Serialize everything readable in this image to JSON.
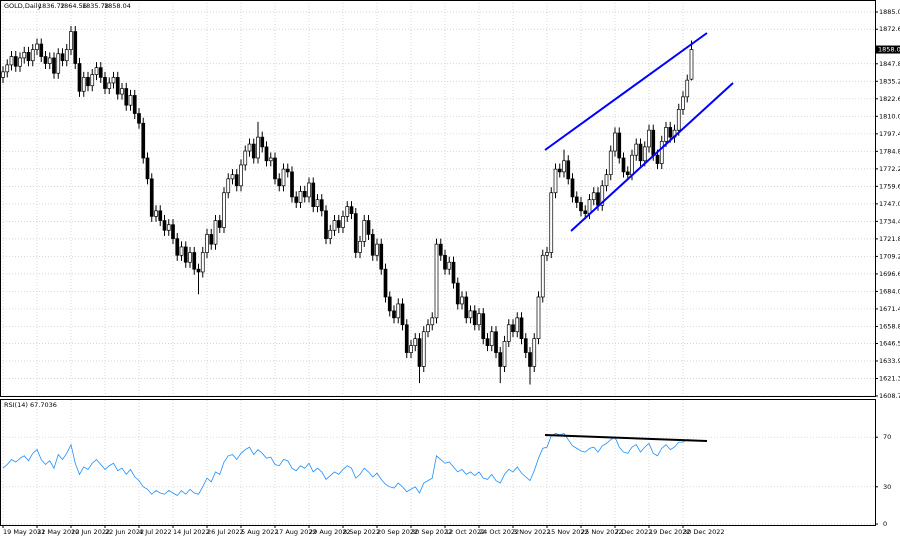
{
  "chart_data": {
    "type": "candlestick",
    "title": "GOLD,Daily",
    "color": "#000000",
    "categories": [
      "19 May 2022",
      null,
      null,
      null,
      null,
      null,
      null,
      null,
      "31 May 2022",
      null,
      null,
      null,
      null,
      null,
      null,
      null,
      "10 Jun 2022",
      null,
      null,
      null,
      null,
      null,
      null,
      null,
      "22 Jun 2022",
      null,
      null,
      null,
      null,
      null,
      null,
      null,
      "4 Jul 2022",
      null,
      null,
      null,
      null,
      null,
      null,
      null,
      "14 Jul 2022",
      null,
      null,
      null,
      null,
      null,
      null,
      null,
      "26 Jul 2022",
      null,
      null,
      null,
      null,
      null,
      null,
      null,
      "5 Aug 2022",
      null,
      null,
      null,
      null,
      null,
      null,
      null,
      "17 Aug 2022",
      null,
      null,
      null,
      null,
      null,
      null,
      null,
      "29 Aug 2022",
      null,
      null,
      null,
      null,
      null,
      null,
      null,
      "8 Sep 2022",
      null,
      null,
      null,
      null,
      null,
      null,
      null,
      "20 Sep 2022",
      null,
      null,
      null,
      null,
      null,
      null,
      null,
      "30 Sep 2022",
      null,
      null,
      null,
      null,
      null,
      null,
      null,
      "12 Oct 2022",
      null,
      null,
      null,
      null,
      null,
      null,
      null,
      "24 Oct 2022",
      null,
      null,
      null,
      null,
      null,
      null,
      null,
      "3 Nov 2022",
      null,
      null,
      null,
      null,
      null,
      null,
      null,
      "15 Nov 2022",
      null,
      null,
      null,
      null,
      null,
      null,
      null,
      "25 Nov 2022",
      null,
      null,
      null,
      null,
      null,
      null,
      null,
      "7 Dec 2022",
      null,
      null,
      null,
      null,
      null,
      null,
      null,
      "19 Dec 2022",
      null,
      null,
      null,
      null,
      null,
      null,
      null,
      "30 Dec 2022",
      null,
      null
    ],
    "open": [
      1838,
      1842,
      1847,
      1853,
      1846,
      1852,
      1856,
      1850,
      1858,
      1862,
      1853,
      1848,
      1852,
      1841,
      1855,
      1850,
      1858,
      1871,
      1848,
      1828,
      1838,
      1832,
      1840,
      1845,
      1838,
      1830,
      1834,
      1838,
      1826,
      1830,
      1818,
      1825,
      1812,
      1805,
      1780,
      1765,
      1738,
      1742,
      1735,
      1728,
      1732,
      1722,
      1710,
      1716,
      1705,
      1712,
      1700,
      1698,
      1712,
      1725,
      1718,
      1735,
      1730,
      1755,
      1765,
      1768,
      1760,
      1775,
      1785,
      1790,
      1780,
      1795,
      1788,
      1778,
      1780,
      1765,
      1760,
      1772,
      1770,
      1752,
      1748,
      1756,
      1752,
      1762,
      1745,
      1750,
      1742,
      1722,
      1728,
      1735,
      1730,
      1738,
      1745,
      1740,
      1712,
      1720,
      1735,
      1725,
      1710,
      1718,
      1700,
      1680,
      1670,
      1665,
      1675,
      1660,
      1640,
      1645,
      1650,
      1630,
      1655,
      1660,
      1665,
      1718,
      1710,
      1700,
      1705,
      1690,
      1675,
      1680,
      1665,
      1670,
      1660,
      1668,
      1650,
      1645,
      1655,
      1640,
      1630,
      1648,
      1660,
      1655,
      1665,
      1650,
      1640,
      1630,
      1650,
      1680,
      1710,
      1712,
      1755,
      1772,
      1770,
      1778,
      1765,
      1752,
      1748,
      1742,
      1740,
      1750,
      1755,
      1746,
      1760,
      1768,
      1785,
      1798,
      1780,
      1770,
      1768,
      1782,
      1790,
      1778,
      1788,
      1800,
      1782,
      1776,
      1792,
      1802,
      1795,
      1800,
      1815,
      1824,
      1836.72
    ],
    "high": [
      1846,
      1851,
      1857,
      1857,
      1856,
      1860,
      1860,
      1862,
      1866,
      1866,
      1857,
      1856,
      1856,
      1859,
      1859,
      1862,
      1875,
      1875,
      1852,
      1842,
      1842,
      1844,
      1849,
      1849,
      1842,
      1838,
      1842,
      1842,
      1834,
      1834,
      1829,
      1829,
      1816,
      1809,
      1784,
      1769,
      1746,
      1746,
      1739,
      1736,
      1736,
      1726,
      1720,
      1720,
      1716,
      1716,
      1704,
      1716,
      1729,
      1729,
      1739,
      1739,
      1759,
      1769,
      1772,
      1772,
      1779,
      1789,
      1794,
      1794,
      1806,
      1799,
      1792,
      1784,
      1784,
      1769,
      1776,
      1776,
      1774,
      1756,
      1760,
      1760,
      1766,
      1766,
      1754,
      1754,
      1746,
      1732,
      1739,
      1739,
      1742,
      1749,
      1749,
      1744,
      1724,
      1739,
      1739,
      1729,
      1722,
      1722,
      1704,
      1684,
      1674,
      1679,
      1679,
      1664,
      1649,
      1654,
      1654,
      1659,
      1664,
      1669,
      1722,
      1722,
      1714,
      1709,
      1709,
      1694,
      1684,
      1684,
      1674,
      1674,
      1672,
      1672,
      1654,
      1659,
      1659,
      1644,
      1652,
      1664,
      1664,
      1669,
      1669,
      1654,
      1644,
      1654,
      1684,
      1714,
      1716,
      1759,
      1776,
      1776,
      1786,
      1782,
      1769,
      1756,
      1752,
      1746,
      1754,
      1759,
      1759,
      1764,
      1772,
      1789,
      1802,
      1802,
      1784,
      1774,
      1786,
      1794,
      1794,
      1792,
      1804,
      1804,
      1786,
      1796,
      1806,
      1806,
      1804,
      1819,
      1828,
      1840,
      1864.56
    ],
    "low": [
      1834,
      1838,
      1843,
      1842,
      1842,
      1848,
      1846,
      1846,
      1854,
      1849,
      1844,
      1844,
      1837,
      1837,
      1846,
      1846,
      1854,
      1844,
      1824,
      1824,
      1828,
      1828,
      1836,
      1834,
      1826,
      1826,
      1830,
      1822,
      1822,
      1814,
      1814,
      1808,
      1801,
      1776,
      1761,
      1734,
      1734,
      1731,
      1724,
      1724,
      1718,
      1706,
      1706,
      1701,
      1701,
      1696,
      1682,
      1694,
      1708,
      1714,
      1714,
      1726,
      1726,
      1751,
      1761,
      1756,
      1756,
      1771,
      1781,
      1776,
      1776,
      1784,
      1774,
      1774,
      1761,
      1756,
      1756,
      1766,
      1748,
      1744,
      1744,
      1748,
      1748,
      1741,
      1741,
      1738,
      1718,
      1718,
      1724,
      1726,
      1726,
      1734,
      1736,
      1708,
      1708,
      1716,
      1721,
      1706,
      1706,
      1696,
      1676,
      1666,
      1661,
      1661,
      1656,
      1636,
      1636,
      1641,
      1618,
      1626,
      1651,
      1656,
      1661,
      1706,
      1696,
      1696,
      1686,
      1671,
      1671,
      1661,
      1661,
      1656,
      1656,
      1646,
      1641,
      1641,
      1636,
      1618,
      1626,
      1644,
      1651,
      1651,
      1646,
      1636,
      1617,
      1626,
      1646,
      1676,
      1706,
      1708,
      1751,
      1766,
      1766,
      1761,
      1748,
      1744,
      1738,
      1736,
      1736,
      1746,
      1742,
      1742,
      1756,
      1764,
      1781,
      1776,
      1766,
      1764,
      1764,
      1778,
      1774,
      1774,
      1784,
      1778,
      1772,
      1772,
      1788,
      1791,
      1791,
      1796,
      1811,
      1820,
      1835.78
    ],
    "close": [
      1842,
      1847,
      1853,
      1846,
      1852,
      1856,
      1850,
      1858,
      1862,
      1853,
      1848,
      1852,
      1841,
      1855,
      1850,
      1858,
      1871,
      1848,
      1828,
      1838,
      1832,
      1840,
      1845,
      1838,
      1830,
      1834,
      1838,
      1826,
      1830,
      1818,
      1825,
      1812,
      1805,
      1780,
      1765,
      1738,
      1742,
      1735,
      1728,
      1732,
      1722,
      1710,
      1716,
      1705,
      1712,
      1700,
      1698,
      1712,
      1725,
      1718,
      1735,
      1730,
      1755,
      1765,
      1768,
      1760,
      1775,
      1785,
      1790,
      1780,
      1795,
      1788,
      1778,
      1780,
      1765,
      1760,
      1772,
      1770,
      1752,
      1748,
      1756,
      1752,
      1762,
      1745,
      1750,
      1742,
      1722,
      1728,
      1735,
      1730,
      1738,
      1745,
      1740,
      1712,
      1720,
      1735,
      1725,
      1710,
      1718,
      1700,
      1680,
      1670,
      1665,
      1675,
      1660,
      1640,
      1645,
      1650,
      1630,
      1655,
      1660,
      1665,
      1718,
      1710,
      1700,
      1705,
      1690,
      1675,
      1680,
      1665,
      1670,
      1660,
      1668,
      1650,
      1645,
      1655,
      1640,
      1630,
      1648,
      1660,
      1655,
      1665,
      1650,
      1640,
      1630,
      1650,
      1680,
      1710,
      1712,
      1755,
      1772,
      1770,
      1778,
      1765,
      1752,
      1748,
      1742,
      1740,
      1750,
      1755,
      1746,
      1760,
      1768,
      1785,
      1798,
      1780,
      1770,
      1768,
      1782,
      1790,
      1778,
      1788,
      1800,
      1782,
      1776,
      1792,
      1802,
      1795,
      1800,
      1815,
      1824,
      1836,
      1858.04
    ],
    "ylim": [
      1608.75,
      1885.05
    ],
    "yticks": [
      1885.05,
      1872.65,
      1847.8,
      1835.2,
      1822.6,
      {
        "value": 1810,
        "label": "1810.00"
      },
      1797.4,
      1784.8,
      1772.2,
      1759.6,
      {
        "value": 1747,
        "label": "1747.00"
      },
      1734.4,
      1721.8,
      1709.2,
      1696.6,
      {
        "value": 1684,
        "label": "1684.00"
      },
      1671.4,
      1658.8,
      1646.55,
      1633.95,
      1621.35,
      1608.75
    ],
    "grid": true,
    "indicator": {
      "type": "line",
      "name": "RSI(14)",
      "color": "#1e90ff",
      "ylim": [
        0,
        100
      ],
      "yticks": [
        70,
        30,
        0
      ],
      "values": [
        45,
        48,
        52,
        50,
        53,
        55,
        51,
        57,
        60,
        52,
        48,
        51,
        45,
        56,
        52,
        57,
        64,
        49,
        40,
        46,
        44,
        49,
        52,
        48,
        44,
        47,
        49,
        43,
        45,
        40,
        44,
        38,
        35,
        30,
        28,
        24,
        27,
        25,
        24,
        27,
        25,
        23,
        27,
        24,
        28,
        25,
        24,
        30,
        37,
        34,
        42,
        40,
        50,
        55,
        56,
        52,
        57,
        60,
        62,
        56,
        60,
        57,
        53,
        54,
        48,
        47,
        52,
        51,
        45,
        43,
        47,
        45,
        49,
        42,
        45,
        42,
        36,
        39,
        42,
        40,
        44,
        47,
        45,
        37,
        40,
        45,
        42,
        38,
        41,
        36,
        32,
        30,
        29,
        33,
        30,
        26,
        28,
        30,
        25,
        33,
        35,
        37,
        55,
        52,
        49,
        50,
        46,
        42,
        44,
        40,
        42,
        39,
        42,
        37,
        36,
        40,
        35,
        33,
        40,
        44,
        42,
        46,
        41,
        38,
        35,
        43,
        53,
        61,
        62,
        71,
        73,
        72,
        73,
        68,
        63,
        61,
        59,
        58,
        61,
        62,
        58,
        63,
        65,
        68,
        70,
        62,
        58,
        57,
        62,
        64,
        58,
        62,
        65,
        57,
        55,
        61,
        64,
        60,
        62,
        66,
        66,
        68,
        67.7036
      ]
    }
  }
}
